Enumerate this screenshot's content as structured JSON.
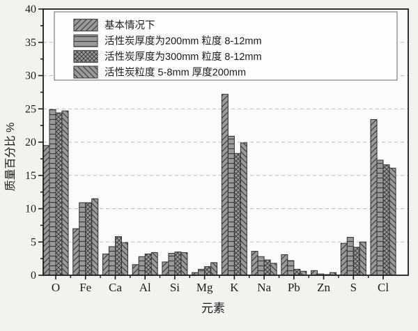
{
  "chart_data": {
    "type": "bar",
    "title": "",
    "xlabel": "元素",
    "ylabel": "质量百分比  %",
    "ylim": [
      0,
      40
    ],
    "y_major_step": 5,
    "y_minor_step": 2.5,
    "grid": "horizontal dashed lines at major ticks 5-35",
    "legend_position": "top-left inside plot area",
    "categories": [
      "O",
      "Fe",
      "Ca",
      "Al",
      "Si",
      "Mg",
      "K",
      "Na",
      "Pb",
      "Zn",
      "S",
      "Cl"
    ],
    "series": [
      {
        "name": "基本情况下",
        "hatch": "diagonal-forward",
        "values": [
          19.5,
          7.0,
          3.2,
          1.6,
          2.0,
          0.4,
          27.2,
          3.6,
          3.1,
          0.7,
          4.8,
          23.4
        ]
      },
      {
        "name": "活性炭厚度为200mm 粒度 8-12mm",
        "hatch": "horizontal",
        "values": [
          24.9,
          10.9,
          4.3,
          2.8,
          3.3,
          0.9,
          20.9,
          2.8,
          2.2,
          0.2,
          5.7,
          17.3
        ]
      },
      {
        "name": "活性炭厚度为300mm 粒度 8-12mm",
        "hatch": "crosshatch",
        "values": [
          24.4,
          10.9,
          5.8,
          3.2,
          3.5,
          1.3,
          18.3,
          2.3,
          0.9,
          0.1,
          4.2,
          16.6
        ]
      },
      {
        "name": "活性炭粒度 5-8mm 厚度200mm",
        "hatch": "diagonal-backward",
        "values": [
          24.7,
          11.5,
          4.9,
          3.4,
          3.4,
          1.9,
          19.9,
          1.8,
          0.6,
          0.4,
          5.0,
          16.1
        ]
      }
    ],
    "colors": {
      "bar_fill": "#9a9a9a",
      "bar_edge": "#2e2e2e",
      "hatch_line": "#3d3d3d",
      "grid_line": "#c1beb8",
      "axis_line": "#1c1c1c",
      "plot_bg": "#fcfbf9",
      "page_bg": "#f4f2ee",
      "legend_bg": "#fdfdfc",
      "legend_border": "#7f7f7f"
    }
  }
}
